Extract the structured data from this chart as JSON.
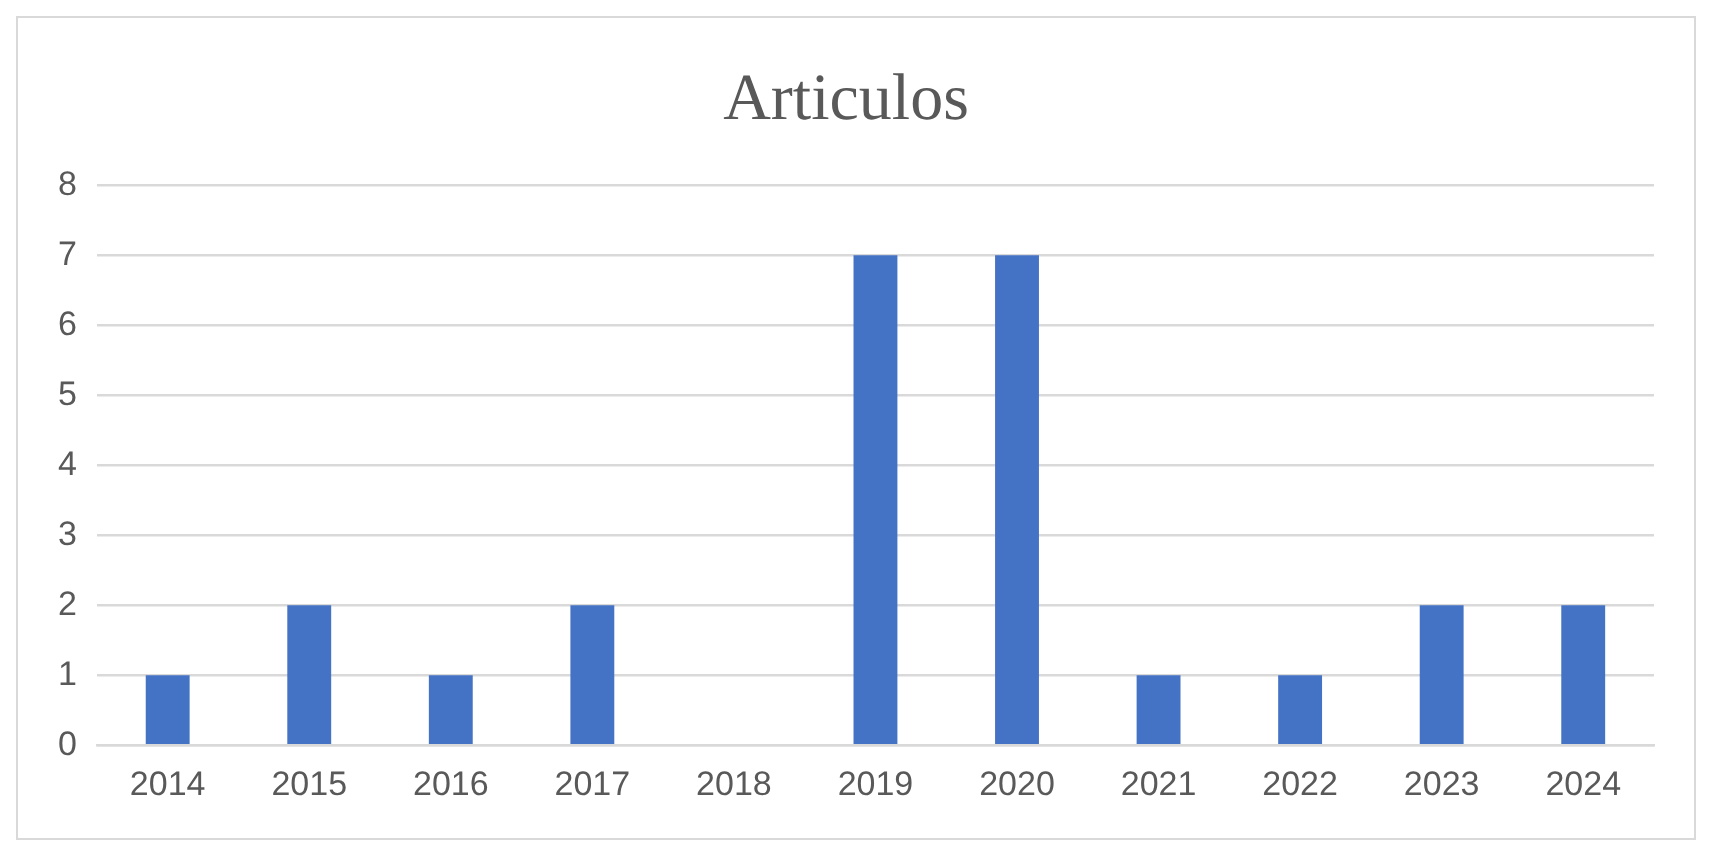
{
  "chart_data": {
    "type": "bar",
    "title": "Articulos",
    "categories": [
      "2014",
      "2015",
      "2016",
      "2017",
      "2018",
      "2019",
      "2020",
      "2021",
      "2022",
      "2023",
      "2024"
    ],
    "values": [
      1,
      2,
      1,
      2,
      0,
      7,
      7,
      1,
      1,
      2,
      2
    ],
    "color": "#4472c4",
    "ylim": [
      0,
      8
    ],
    "yticks": [
      0,
      1,
      2,
      3,
      4,
      5,
      6,
      7,
      8
    ],
    "grid": "y",
    "legend": false
  }
}
